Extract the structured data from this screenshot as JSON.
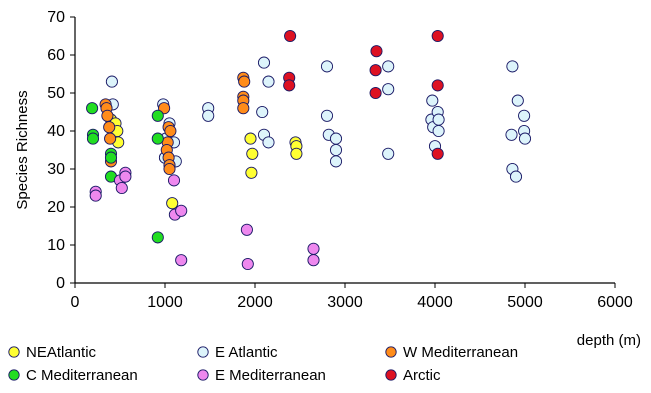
{
  "chart_data": {
    "type": "scatter",
    "title": "",
    "xlabel": "depth (m)",
    "ylabel": "Species Richness",
    "xlim": [
      0,
      6000
    ],
    "ylim": [
      0,
      70
    ],
    "x_ticks": [
      "0",
      "1000",
      "2000",
      "3000",
      "4000",
      "5000",
      "6000"
    ],
    "y_ticks": [
      "0",
      "10",
      "20",
      "30",
      "40",
      "50",
      "60",
      "70"
    ],
    "grid": false,
    "legend_position": "bottom",
    "series": [
      {
        "name": "NEAtlantic",
        "color": "#ffff33",
        "points": [
          [
            400,
            43
          ],
          [
            450,
            42
          ],
          [
            470,
            40
          ],
          [
            480,
            37
          ],
          [
            1000,
            33
          ],
          [
            1080,
            21
          ],
          [
            1950,
            38
          ],
          [
            1970,
            34
          ],
          [
            1960,
            29
          ],
          [
            2450,
            37
          ],
          [
            2460,
            36
          ],
          [
            2460,
            34
          ]
        ]
      },
      {
        "name": "E Atlantic",
        "color": "#ddf4fb",
        "points": [
          [
            410,
            53
          ],
          [
            420,
            47
          ],
          [
            980,
            47
          ],
          [
            1000,
            33
          ],
          [
            1010,
            38
          ],
          [
            1050,
            42
          ],
          [
            1100,
            37
          ],
          [
            1120,
            32
          ],
          [
            1480,
            46
          ],
          [
            1480,
            44
          ],
          [
            2100,
            58
          ],
          [
            2150,
            53
          ],
          [
            2080,
            45
          ],
          [
            2100,
            39
          ],
          [
            2150,
            37
          ],
          [
            2800,
            57
          ],
          [
            2800,
            44
          ],
          [
            2820,
            39
          ],
          [
            2900,
            38
          ],
          [
            2900,
            35
          ],
          [
            2900,
            32
          ],
          [
            3480,
            57
          ],
          [
            3480,
            51
          ],
          [
            3480,
            34
          ],
          [
            3970,
            48
          ],
          [
            3960,
            43
          ],
          [
            3980,
            41
          ],
          [
            4000,
            36
          ],
          [
            4030,
            45
          ],
          [
            4040,
            43
          ],
          [
            4040,
            40
          ],
          [
            4860,
            57
          ],
          [
            4920,
            48
          ],
          [
            4850,
            39
          ],
          [
            4860,
            30
          ],
          [
            4900,
            28
          ],
          [
            4990,
            44
          ],
          [
            4990,
            40
          ],
          [
            5000,
            38
          ]
        ]
      },
      {
        "name": "W Mediterranean",
        "color": "#ff8c1a",
        "points": [
          [
            340,
            47
          ],
          [
            350,
            46
          ],
          [
            360,
            44
          ],
          [
            380,
            41
          ],
          [
            390,
            38
          ],
          [
            400,
            32
          ],
          [
            990,
            46
          ],
          [
            1040,
            41
          ],
          [
            1060,
            40
          ],
          [
            1030,
            37
          ],
          [
            1020,
            35
          ],
          [
            1040,
            33
          ],
          [
            1050,
            31
          ],
          [
            1050,
            30
          ],
          [
            1870,
            54
          ],
          [
            1880,
            53
          ],
          [
            1870,
            49
          ],
          [
            1870,
            48
          ],
          [
            1870,
            46
          ]
        ]
      },
      {
        "name": "C Mediterranean",
        "color": "#22dd22",
        "points": [
          [
            190,
            46
          ],
          [
            200,
            39
          ],
          [
            200,
            38
          ],
          [
            400,
            34
          ],
          [
            400,
            33
          ],
          [
            400,
            28
          ],
          [
            920,
            44
          ],
          [
            920,
            38
          ],
          [
            920,
            12
          ]
        ]
      },
      {
        "name": "E Mediterranean",
        "color": "#ee88ee",
        "points": [
          [
            230,
            24
          ],
          [
            230,
            23
          ],
          [
            500,
            27
          ],
          [
            520,
            25
          ],
          [
            560,
            29
          ],
          [
            560,
            28
          ],
          [
            1100,
            27
          ],
          [
            1110,
            18
          ],
          [
            1180,
            19
          ],
          [
            1180,
            6
          ],
          [
            1910,
            14
          ],
          [
            1920,
            5
          ],
          [
            2650,
            9
          ],
          [
            2650,
            6
          ]
        ]
      },
      {
        "name": "Arctic",
        "color": "#dd1122",
        "points": [
          [
            2390,
            65
          ],
          [
            2380,
            54
          ],
          [
            2380,
            52
          ],
          [
            3350,
            61
          ],
          [
            3340,
            56
          ],
          [
            3340,
            50
          ],
          [
            4030,
            65
          ],
          [
            4030,
            52
          ],
          [
            4030,
            34
          ]
        ]
      }
    ]
  }
}
